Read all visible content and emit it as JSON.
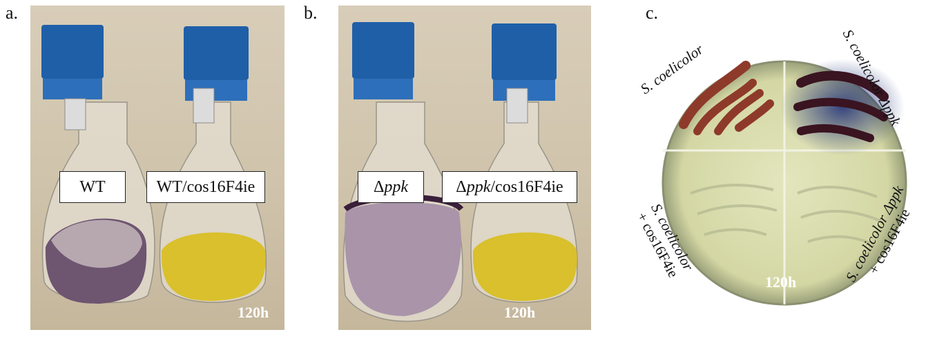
{
  "panels": {
    "a": {
      "letter": "a.",
      "label_left": "WT",
      "label_right": "WT/cos16F4ie",
      "time": "120h"
    },
    "b": {
      "letter": "b.",
      "label_left_prefix": "Δ",
      "label_left_italic": "ppk",
      "label_right_prefix": "Δ",
      "label_right_italic": "ppk",
      "label_right_suffix": "/cos16F4ie",
      "time": "120h"
    },
    "c": {
      "letter": "c.",
      "time": "120h",
      "q_top_left_italic": "S. coelicolor",
      "q_top_right_italic": "S. coelicolor Δppk",
      "q_bottom_left_line1": "S. coelicolor",
      "q_bottom_left_line2": "+ cos16F4ie",
      "q_bottom_right_line1": "S. coelicolor Δppk",
      "q_bottom_right_line2": "+ cos16F4ie"
    }
  },
  "colors": {
    "cap_blue": "#1f5fa8",
    "purple_culture": "#6e5570",
    "yellow_culture": "#d9c02c",
    "agar": "#dfe2b4",
    "red_growth": "#8e3a2a",
    "blue_pigment": "#1a2a78"
  }
}
